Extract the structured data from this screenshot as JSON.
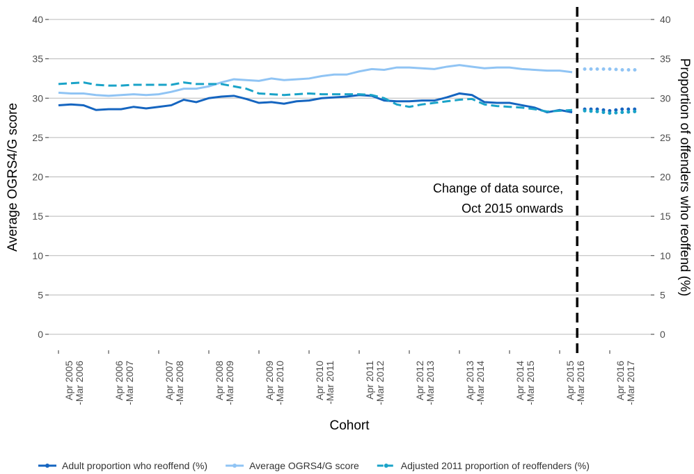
{
  "chart_data": {
    "type": "line",
    "x_label": "Cohort",
    "y_label": "Average OGRS4/G score",
    "y2_label": "Proportion of offenders who reoffend (%)",
    "categories": [
      "Apr 2005\n-Mar 2006",
      null,
      null,
      null,
      "Apr 2006\n-Mar 2007",
      null,
      null,
      null,
      "Apr 2007\n-Mar 2008",
      null,
      null,
      null,
      "Apr 2008\n-Mar 2009",
      null,
      null,
      null,
      "Apr 2009\n-Mar 2010",
      null,
      null,
      null,
      "Apr 2010\n-Mar 2011",
      null,
      null,
      null,
      "Apr 2011\n-Mar 2012",
      null,
      null,
      null,
      "Apr 2012\n-Mar 2013",
      null,
      null,
      null,
      "Apr 2013\n-Mar 2014",
      null,
      null,
      null,
      "Apr 2014\n-Mar 2015",
      null,
      null,
      null,
      "Apr 2015\n-Mar 2016",
      null,
      null,
      null,
      "Apr 2016\n-Mar 2017",
      null,
      null
    ],
    "series": [
      {
        "name": "Adult proportion who reoffend (%)",
        "color": "#1565c0",
        "line_style": "solid",
        "axis": "y2",
        "values": [
          29.1,
          29.2,
          29.1,
          28.5,
          28.6,
          28.6,
          28.9,
          28.7,
          28.9,
          29.1,
          29.8,
          29.5,
          30.0,
          30.2,
          30.3,
          29.9,
          29.4,
          29.5,
          29.3,
          29.6,
          29.7,
          30.0,
          30.1,
          30.2,
          30.4,
          30.3,
          29.7,
          29.6,
          29.6,
          29.7,
          29.7,
          30.1,
          30.6,
          30.4,
          29.5,
          29.4,
          29.4,
          29.1,
          28.8,
          28.2,
          28.5,
          28.2,
          28.6,
          28.6,
          28.4,
          28.6,
          28.6
        ]
      },
      {
        "name": "Average OGRS4/G score",
        "color": "#90c4f4",
        "line_style": "solid",
        "values": [
          30.7,
          30.6,
          30.6,
          30.4,
          30.3,
          30.4,
          30.5,
          30.4,
          30.5,
          30.8,
          31.2,
          31.2,
          31.5,
          32.0,
          32.4,
          32.3,
          32.2,
          32.5,
          32.3,
          32.4,
          32.5,
          32.8,
          33.0,
          33.0,
          33.4,
          33.7,
          33.6,
          33.9,
          33.9,
          33.8,
          33.7,
          34.0,
          34.2,
          34.0,
          33.8,
          33.9,
          33.9,
          33.7,
          33.6,
          33.5,
          33.5,
          33.3,
          33.7,
          33.7,
          33.7,
          33.6,
          33.6
        ]
      },
      {
        "name": "Adjusted 2011 proportion of reoffenders (%)",
        "color": "#1aa3c8",
        "line_style": "dashed",
        "axis": "y2",
        "values": [
          31.8,
          31.9,
          32.0,
          31.7,
          31.6,
          31.6,
          31.7,
          31.7,
          31.7,
          31.7,
          32.0,
          31.8,
          31.8,
          31.8,
          31.5,
          31.2,
          30.6,
          30.5,
          30.4,
          30.5,
          30.6,
          30.5,
          30.5,
          30.5,
          30.5,
          30.4,
          30.0,
          29.2,
          28.9,
          29.2,
          29.4,
          29.6,
          29.8,
          29.9,
          29.2,
          29.0,
          28.9,
          28.8,
          28.6,
          28.3,
          28.4,
          28.5,
          28.4,
          28.3,
          28.1,
          28.2,
          28.3
        ]
      }
    ],
    "ylim": [
      0,
      40
    ],
    "yticks": [
      0,
      5,
      10,
      15,
      20,
      25,
      30,
      35,
      40
    ],
    "y2lim": [
      0,
      40
    ],
    "y2ticks": [
      0,
      5,
      10,
      15,
      20,
      25,
      30,
      35,
      40
    ],
    "grid": true,
    "legend": "bottom",
    "annotation": {
      "text": [
        "Change of data source,",
        "Oct 2015 onwards"
      ],
      "x": 41.4
    }
  }
}
